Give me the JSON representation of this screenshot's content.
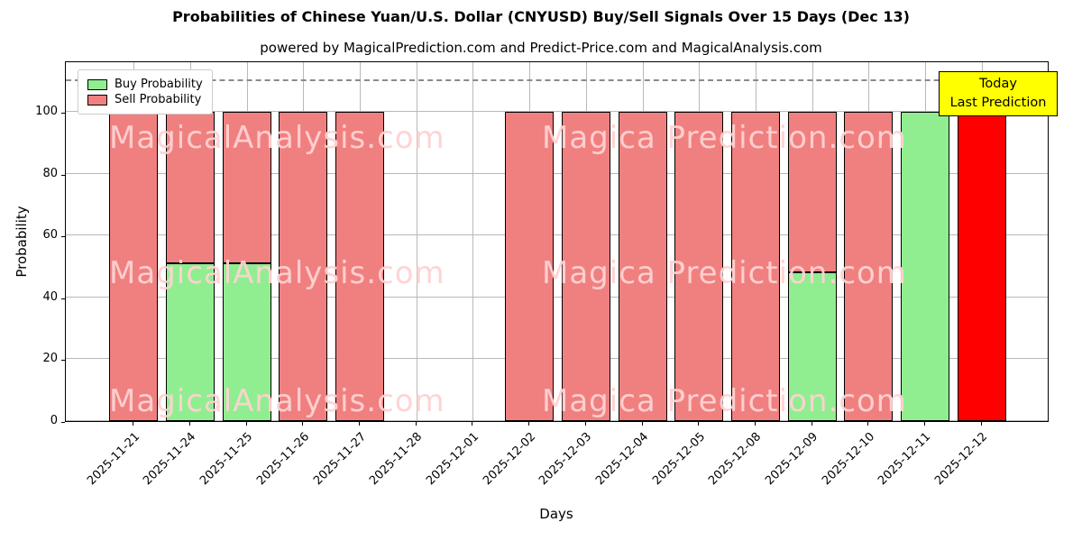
{
  "title": "Probabilities of Chinese Yuan/U.S. Dollar (CNYUSD) Buy/Sell Signals Over 15 Days (Dec 13)",
  "subtitle": "powered by MagicalPrediction.com and Predict-Price.com and MagicalAnalysis.com",
  "annotation": {
    "line1": "Today",
    "line2": "Last Prediction"
  },
  "watermarks": [
    "MagicalAnalysis.com",
    "Magica Prediction.com"
  ],
  "colors": {
    "buy": "#90ee90",
    "sell": "#f08080",
    "today": "#ff0000",
    "annotation_bg": "#ffff00",
    "grid": "#b8b8b8",
    "watermark": "rgba(255,210,210,0.95)"
  },
  "chart_data": {
    "type": "bar",
    "stacked": true,
    "title": "Probabilities of Chinese Yuan/U.S. Dollar (CNYUSD) Buy/Sell Signals Over 15 Days (Dec 13)",
    "xlabel": "Days",
    "ylabel": "Probability",
    "ylim": [
      0,
      116.6
    ],
    "yticks": [
      0,
      20,
      40,
      60,
      80,
      100
    ],
    "dashed_line_y": 110,
    "grid": true,
    "legend_position": "upper left",
    "categories": [
      "2025-11-21",
      "2025-11-24",
      "2025-11-25",
      "2025-11-26",
      "2025-11-27",
      "2025-11-28",
      "2025-12-01",
      "2025-12-02",
      "2025-12-03",
      "2025-12-04",
      "2025-12-05",
      "2025-12-08",
      "2025-12-09",
      "2025-12-10",
      "2025-12-11",
      "2025-12-12"
    ],
    "series": [
      {
        "name": "Buy Probability",
        "color": "#90ee90",
        "values": [
          0,
          51,
          51,
          0,
          0,
          0,
          0,
          0,
          0,
          0,
          0,
          0,
          48,
          0,
          100,
          0
        ]
      },
      {
        "name": "Sell Probability",
        "color": "#f08080",
        "values": [
          100,
          49,
          49,
          100,
          100,
          0,
          0,
          100,
          100,
          100,
          100,
          100,
          52,
          100,
          0,
          100
        ]
      }
    ],
    "today_index": 15
  }
}
